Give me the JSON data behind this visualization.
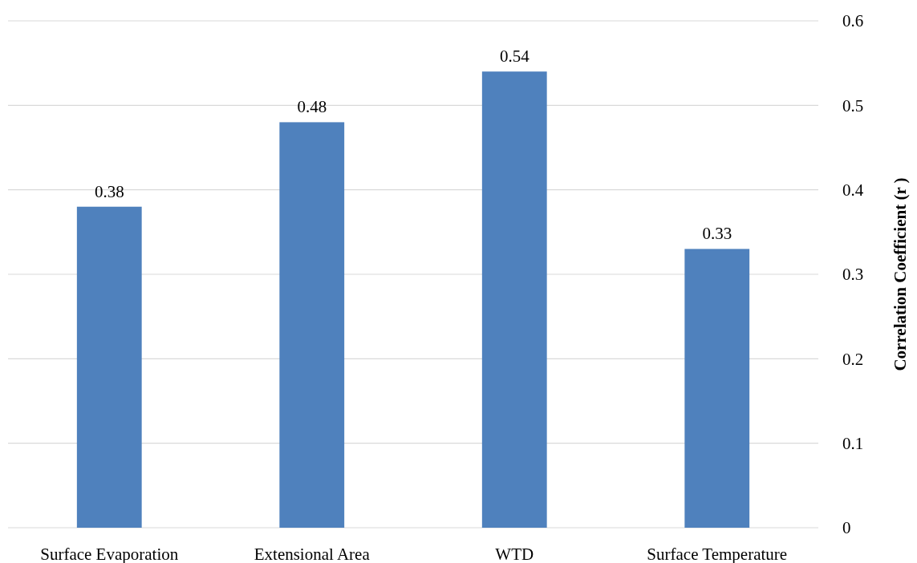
{
  "chart_data": {
    "type": "bar",
    "ylabel": "Correlation Coefficient (r )",
    "categories": [
      "Surface Evaporation",
      "Extensional Area",
      "WTD",
      "Surface Temperature"
    ],
    "values": [
      0.38,
      0.48,
      0.54,
      0.33
    ],
    "color": "#4f81bd",
    "ylim": [
      0,
      0.6
    ],
    "yticks": [
      0,
      0.1,
      0.2,
      0.3,
      0.4,
      0.5,
      0.6
    ],
    "grid": "y",
    "data_labels": true
  }
}
